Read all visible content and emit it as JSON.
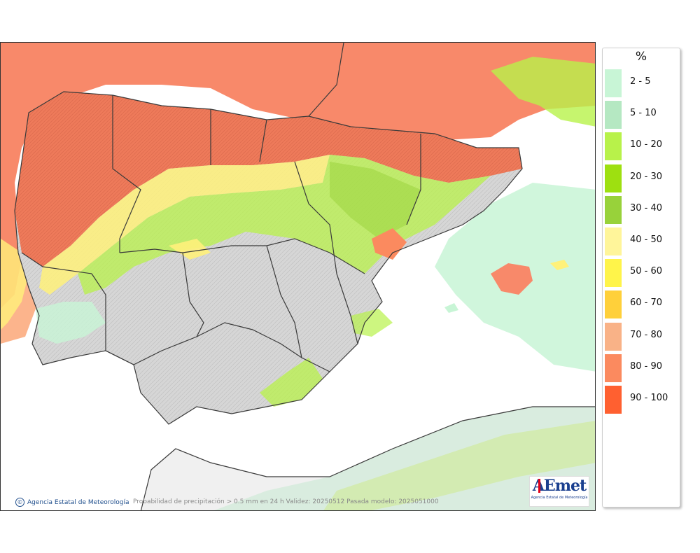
{
  "legend": {
    "title": "%",
    "items": [
      {
        "label": "2 - 5",
        "color": "#c8f5d6"
      },
      {
        "label": "5 - 10",
        "color": "#b5e8c2"
      },
      {
        "label": "10 - 20",
        "color": "#b8f24a"
      },
      {
        "label": "20 - 30",
        "color": "#9ee010"
      },
      {
        "label": "30 - 40",
        "color": "#98d23a"
      },
      {
        "label": "40 - 50",
        "color": "#fff59a"
      },
      {
        "label": "50 - 60",
        "color": "#fff44a"
      },
      {
        "label": "60 - 70",
        "color": "#ffd03a"
      },
      {
        "label": "70 - 80",
        "color": "#f9b287"
      },
      {
        "label": "80 - 90",
        "color": "#fb8a5f"
      },
      {
        "label": "90 - 100",
        "color": "#ff6030"
      }
    ]
  },
  "footer": {
    "credit": "Agencia Estatal de Meteorología",
    "caption": "Probabilidad de precipitación > 0.5 mm en 24 h Validez: 20250512 Pasada modelo: 2025051000"
  },
  "logo": {
    "wordmark": "AEmet",
    "subtitle": "Agencia Estatal de Meteorología"
  },
  "map": {
    "sea_color": "#ffffff",
    "land_color": "#d9d9d9",
    "border_color": "#3a3a3a"
  }
}
